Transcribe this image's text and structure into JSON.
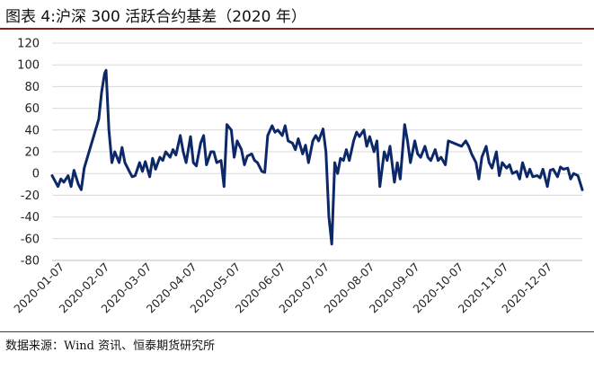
{
  "figure": {
    "title": "图表 4:沪深 300 活跃合约基差（2020 年）",
    "source": "数据来源：Wind 资讯、恒泰期货研究所"
  },
  "colors": {
    "line": "#0d2869",
    "grid": "#d9d9d9",
    "rule": "#8b1a1a"
  },
  "chart_data": {
    "type": "line",
    "title": "",
    "xlabel": "",
    "ylabel": "",
    "ylim": [
      -80,
      120
    ],
    "yticks": [
      120,
      100,
      80,
      60,
      40,
      20,
      0,
      -20,
      -40,
      -60,
      -80
    ],
    "xlim": [
      "2020-01-02",
      "2020-12-31"
    ],
    "xtick_labels": [
      "2020-01-07",
      "2020-02-07",
      "2020-03-07",
      "2020-04-07",
      "2020-05-07",
      "2020-06-07",
      "2020-07-07",
      "2020-08-07",
      "2020-09-07",
      "2020-10-07",
      "2020-11-07",
      "2020-12-07"
    ],
    "grid": "horizontal",
    "legend": "none",
    "series": [
      {
        "name": "",
        "points": [
          [
            "2020-01-02",
            -2
          ],
          [
            "2020-01-06",
            -12
          ],
          [
            "2020-01-08",
            -5
          ],
          [
            "2020-01-10",
            -8
          ],
          [
            "2020-01-13",
            -2
          ],
          [
            "2020-01-15",
            -12
          ],
          [
            "2020-01-17",
            3
          ],
          [
            "2020-01-20",
            -10
          ],
          [
            "2020-01-22",
            -15
          ],
          [
            "2020-01-24",
            5
          ],
          [
            "2020-02-03",
            50
          ],
          [
            "2020-02-05",
            75
          ],
          [
            "2020-02-07",
            92
          ],
          [
            "2020-02-08",
            95
          ],
          [
            "2020-02-10",
            40
          ],
          [
            "2020-02-12",
            10
          ],
          [
            "2020-02-14",
            20
          ],
          [
            "2020-02-17",
            10
          ],
          [
            "2020-02-19",
            24
          ],
          [
            "2020-02-21",
            10
          ],
          [
            "2020-02-24",
            2
          ],
          [
            "2020-02-26",
            -3
          ],
          [
            "2020-02-28",
            -2
          ],
          [
            "2020-03-02",
            10
          ],
          [
            "2020-03-04",
            2
          ],
          [
            "2020-03-06",
            11
          ],
          [
            "2020-03-09",
            -3
          ],
          [
            "2020-03-11",
            14
          ],
          [
            "2020-03-13",
            4
          ],
          [
            "2020-03-16",
            15
          ],
          [
            "2020-03-18",
            12
          ],
          [
            "2020-03-20",
            20
          ],
          [
            "2020-03-23",
            15
          ],
          [
            "2020-03-25",
            22
          ],
          [
            "2020-03-27",
            17
          ],
          [
            "2020-03-30",
            35
          ],
          [
            "2020-04-01",
            20
          ],
          [
            "2020-04-03",
            10
          ],
          [
            "2020-04-06",
            34
          ],
          [
            "2020-04-08",
            10
          ],
          [
            "2020-04-10",
            7
          ],
          [
            "2020-04-13",
            28
          ],
          [
            "2020-04-15",
            35
          ],
          [
            "2020-04-17",
            8
          ],
          [
            "2020-04-20",
            20
          ],
          [
            "2020-04-22",
            20
          ],
          [
            "2020-04-24",
            10
          ],
          [
            "2020-04-27",
            12
          ],
          [
            "2020-04-29",
            -12
          ],
          [
            "2020-05-01",
            45
          ],
          [
            "2020-05-04",
            40
          ],
          [
            "2020-05-06",
            15
          ],
          [
            "2020-05-08",
            30
          ],
          [
            "2020-05-11",
            22
          ],
          [
            "2020-05-13",
            8
          ],
          [
            "2020-05-15",
            16
          ],
          [
            "2020-05-18",
            18
          ],
          [
            "2020-05-20",
            12
          ],
          [
            "2020-05-22",
            10
          ],
          [
            "2020-05-25",
            2
          ],
          [
            "2020-05-27",
            1
          ],
          [
            "2020-05-29",
            35
          ],
          [
            "2020-06-01",
            44
          ],
          [
            "2020-06-03",
            38
          ],
          [
            "2020-06-05",
            40
          ],
          [
            "2020-06-08",
            35
          ],
          [
            "2020-06-10",
            44
          ],
          [
            "2020-06-12",
            30
          ],
          [
            "2020-06-15",
            28
          ],
          [
            "2020-06-17",
            22
          ],
          [
            "2020-06-19",
            32
          ],
          [
            "2020-06-22",
            18
          ],
          [
            "2020-06-24",
            26
          ],
          [
            "2020-06-26",
            10
          ],
          [
            "2020-06-29",
            30
          ],
          [
            "2020-07-01",
            35
          ],
          [
            "2020-07-03",
            30
          ],
          [
            "2020-07-06",
            41
          ],
          [
            "2020-07-08",
            20
          ],
          [
            "2020-07-10",
            -40
          ],
          [
            "2020-07-12",
            -65
          ],
          [
            "2020-07-14",
            10
          ],
          [
            "2020-07-16",
            0
          ],
          [
            "2020-07-18",
            14
          ],
          [
            "2020-07-20",
            12
          ],
          [
            "2020-07-22",
            22
          ],
          [
            "2020-07-24",
            12
          ],
          [
            "2020-07-27",
            30
          ],
          [
            "2020-07-29",
            38
          ],
          [
            "2020-07-31",
            34
          ],
          [
            "2020-08-03",
            40
          ],
          [
            "2020-08-05",
            25
          ],
          [
            "2020-08-07",
            34
          ],
          [
            "2020-08-10",
            20
          ],
          [
            "2020-08-12",
            30
          ],
          [
            "2020-08-14",
            -12
          ],
          [
            "2020-08-17",
            20
          ],
          [
            "2020-08-19",
            12
          ],
          [
            "2020-08-21",
            25
          ],
          [
            "2020-08-24",
            -8
          ],
          [
            "2020-08-26",
            10
          ],
          [
            "2020-08-28",
            -5
          ],
          [
            "2020-08-31",
            45
          ],
          [
            "2020-09-02",
            30
          ],
          [
            "2020-09-04",
            10
          ],
          [
            "2020-09-07",
            30
          ],
          [
            "2020-09-09",
            18
          ],
          [
            "2020-09-11",
            15
          ],
          [
            "2020-09-14",
            25
          ],
          [
            "2020-09-16",
            15
          ],
          [
            "2020-09-18",
            12
          ],
          [
            "2020-09-21",
            22
          ],
          [
            "2020-09-23",
            12
          ],
          [
            "2020-09-25",
            15
          ],
          [
            "2020-09-28",
            8
          ],
          [
            "2020-09-30",
            30
          ],
          [
            "2020-10-09",
            25
          ],
          [
            "2020-10-12",
            30
          ],
          [
            "2020-10-14",
            25
          ],
          [
            "2020-10-16",
            18
          ],
          [
            "2020-10-19",
            10
          ],
          [
            "2020-10-21",
            -5
          ],
          [
            "2020-10-23",
            15
          ],
          [
            "2020-10-26",
            25
          ],
          [
            "2020-10-28",
            10
          ],
          [
            "2020-10-30",
            5
          ],
          [
            "2020-11-02",
            20
          ],
          [
            "2020-11-04",
            -2
          ],
          [
            "2020-11-06",
            10
          ],
          [
            "2020-11-09",
            5
          ],
          [
            "2020-11-11",
            8
          ],
          [
            "2020-11-13",
            0
          ],
          [
            "2020-11-16",
            2
          ],
          [
            "2020-11-18",
            -5
          ],
          [
            "2020-11-20",
            10
          ],
          [
            "2020-11-23",
            -3
          ],
          [
            "2020-11-25",
            4
          ],
          [
            "2020-11-27",
            -3
          ],
          [
            "2020-11-30",
            -2
          ],
          [
            "2020-12-02",
            -4
          ],
          [
            "2020-12-04",
            4
          ],
          [
            "2020-12-07",
            -12
          ],
          [
            "2020-12-09",
            3
          ],
          [
            "2020-12-11",
            4
          ],
          [
            "2020-12-14",
            -3
          ],
          [
            "2020-12-16",
            6
          ],
          [
            "2020-12-18",
            4
          ],
          [
            "2020-12-21",
            5
          ],
          [
            "2020-12-23",
            -5
          ],
          [
            "2020-12-25",
            0
          ],
          [
            "2020-12-28",
            -2
          ],
          [
            "2020-12-31",
            -15
          ]
        ]
      }
    ]
  }
}
